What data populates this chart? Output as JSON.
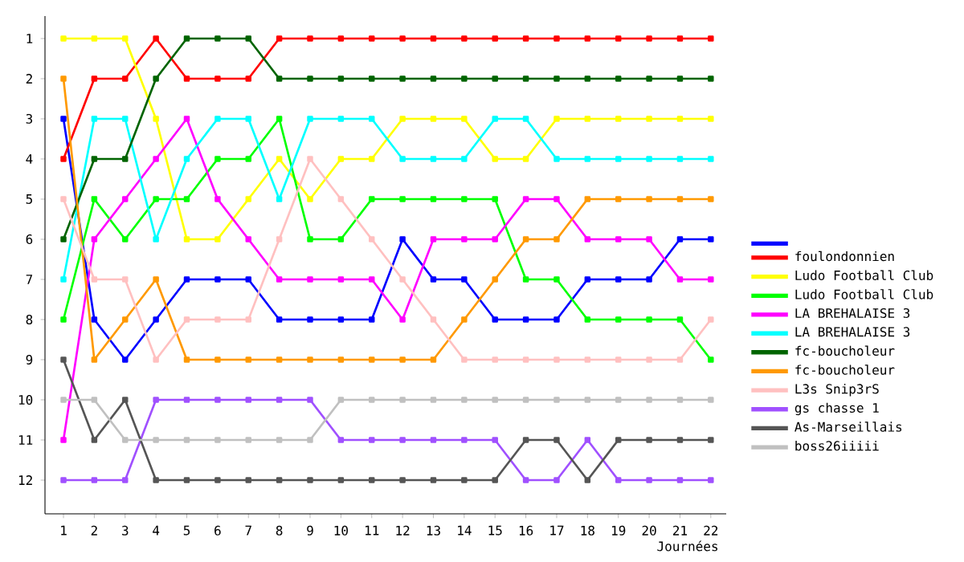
{
  "chart_data": {
    "type": "line",
    "xlabel": "Journées",
    "marker": "square",
    "line_style": "solid",
    "legend": "right",
    "grid": false,
    "x": [
      1,
      2,
      3,
      4,
      5,
      6,
      7,
      8,
      9,
      10,
      11,
      12,
      13,
      14,
      15,
      16,
      17,
      18,
      19,
      20,
      21,
      22
    ],
    "xlim": [
      0.4,
      22.5
    ],
    "xticks": [
      1,
      2,
      3,
      4,
      5,
      6,
      7,
      8,
      9,
      10,
      11,
      12,
      13,
      14,
      15,
      16,
      17,
      18,
      19,
      20,
      21,
      22
    ],
    "ylim": [
      12.84,
      0.44
    ],
    "yticks": [
      1,
      2,
      3,
      4,
      5,
      6,
      7,
      8,
      9,
      10,
      11,
      12
    ],
    "series": [
      {
        "color": "#0000ff",
        "values": [
          3,
          8,
          9,
          8,
          7,
          7,
          7,
          8,
          8,
          8,
          8,
          6,
          7,
          7,
          8,
          8,
          8,
          7,
          7,
          7,
          6,
          6
        ]
      },
      {
        "name": "foulondonnien",
        "color": "#ff0000",
        "values": [
          4,
          2,
          2,
          1,
          2,
          2,
          2,
          1,
          1,
          1,
          1,
          1,
          1,
          1,
          1,
          1,
          1,
          1,
          1,
          1,
          1,
          1
        ]
      },
      {
        "name": "Ludo Football Club",
        "color": "#ffff00",
        "values": [
          1,
          1,
          1,
          3,
          6,
          6,
          5,
          4,
          5,
          4,
          4,
          3,
          3,
          3,
          4,
          4,
          3,
          3,
          3,
          3,
          3,
          3
        ]
      },
      {
        "name": "Ludo Football Club",
        "color": "#00ff00",
        "values": [
          8,
          5,
          6,
          5,
          5,
          4,
          4,
          3,
          6,
          6,
          5,
          5,
          5,
          5,
          5,
          7,
          7,
          8,
          8,
          8,
          8,
          9
        ]
      },
      {
        "name": "LA BREHALAISE 3",
        "color": "#ff00ff",
        "values": [
          11,
          6,
          5,
          4,
          3,
          5,
          6,
          7,
          7,
          7,
          7,
          8,
          6,
          6,
          6,
          5,
          5,
          6,
          6,
          6,
          7,
          7
        ]
      },
      {
        "name": "LA BREHALAISE 3",
        "color": "#00ffff",
        "values": [
          7,
          3,
          3,
          6,
          4,
          3,
          3,
          5,
          3,
          3,
          3,
          4,
          4,
          4,
          3,
          3,
          4,
          4,
          4,
          4,
          4,
          4
        ]
      },
      {
        "name": "fc-boucholeur",
        "color": "#006400",
        "values": [
          6,
          4,
          4,
          2,
          1,
          1,
          1,
          2,
          2,
          2,
          2,
          2,
          2,
          2,
          2,
          2,
          2,
          2,
          2,
          2,
          2,
          2
        ]
      },
      {
        "name": "fc-boucholeur",
        "color": "#ff9900",
        "values": [
          2,
          9,
          8,
          7,
          9,
          9,
          9,
          9,
          9,
          9,
          9,
          9,
          9,
          8,
          7,
          6,
          6,
          5,
          5,
          5,
          5,
          5
        ]
      },
      {
        "name": "L3s Snip3rS",
        "color": "#ffc0c0",
        "values": [
          5,
          7,
          7,
          9,
          8,
          8,
          8,
          6,
          4,
          5,
          6,
          7,
          8,
          9,
          9,
          9,
          9,
          9,
          9,
          9,
          9,
          8
        ]
      },
      {
        "name": "gs chasse 1",
        "color": "#a050ff",
        "values": [
          12,
          12,
          12,
          10,
          10,
          10,
          10,
          10,
          10,
          11,
          11,
          11,
          11,
          11,
          11,
          12,
          12,
          11,
          12,
          12,
          12,
          12
        ]
      },
      {
        "name": "As-Marseillais",
        "color": "#555555",
        "values": [
          9,
          11,
          10,
          12,
          12,
          12,
          12,
          12,
          12,
          12,
          12,
          12,
          12,
          12,
          12,
          11,
          11,
          12,
          11,
          11,
          11,
          11
        ]
      },
      {
        "name": "boss26iiiii",
        "color": "#c0c0c0",
        "values": [
          10,
          10,
          11,
          11,
          11,
          11,
          11,
          11,
          11,
          10,
          10,
          10,
          10,
          10,
          10,
          10,
          10,
          10,
          10,
          10,
          10,
          10
        ]
      }
    ]
  }
}
